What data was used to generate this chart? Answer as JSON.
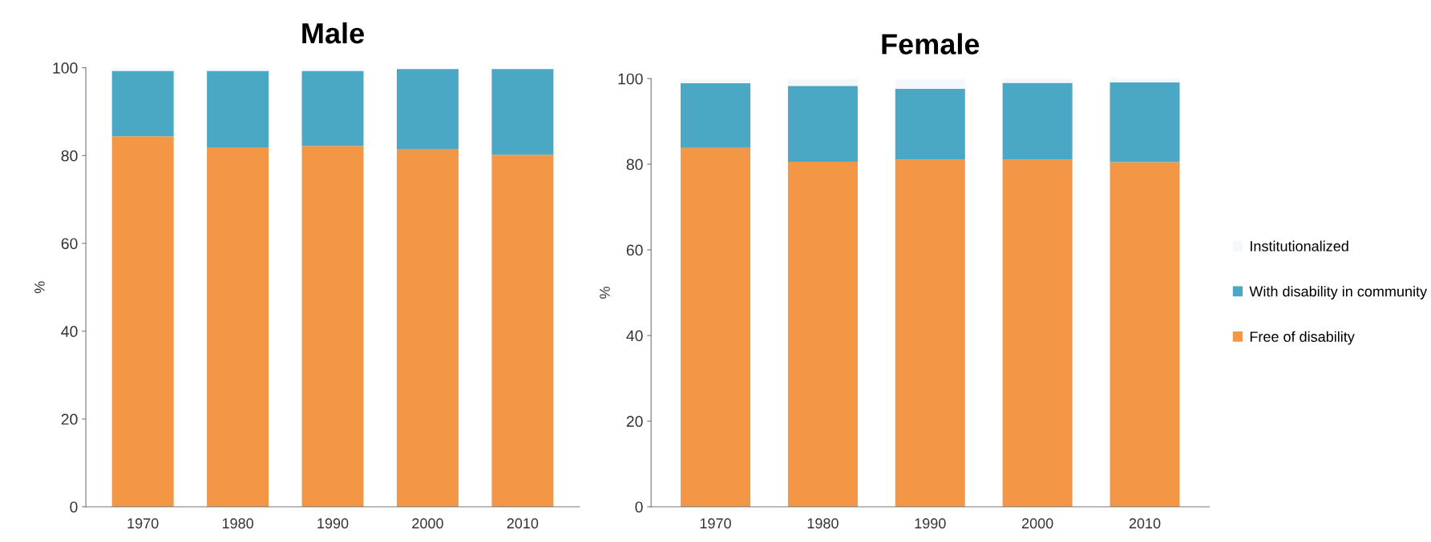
{
  "chart_data": [
    {
      "type": "bar",
      "title": "Male",
      "ylabel": "%",
      "stacked": true,
      "categories": [
        "1970",
        "1980",
        "1990",
        "2000",
        "2010"
      ],
      "ylim": [
        0,
        100
      ],
      "yticks": [
        0,
        20,
        40,
        60,
        80,
        100
      ],
      "grid": false,
      "legend": false,
      "series": [
        {
          "color": "#f39646",
          "values": [
            84.4,
            81.9,
            82.2,
            81.5,
            80.2
          ]
        },
        {
          "color": "#4aa8c5",
          "values": [
            14.9,
            17.4,
            17.1,
            18.2,
            19.5
          ]
        },
        {
          "color": "#f4f8fa",
          "values": [
            0.7,
            0.7,
            0.7,
            null,
            null
          ]
        }
      ]
    },
    {
      "type": "bar",
      "title": "Female",
      "ylabel": "%",
      "stacked": true,
      "categories": [
        "1970",
        "1980",
        "1990",
        "2000",
        "2010"
      ],
      "ylim": [
        0,
        100
      ],
      "yticks": [
        0,
        20,
        40,
        60,
        80,
        100
      ],
      "grid": false,
      "legend": "right",
      "series": [
        {
          "name": "Free of disability",
          "color": "#f39646",
          "values": [
            83.8,
            80.6,
            81.1,
            81.1,
            80.5
          ]
        },
        {
          "name": "With disability in community",
          "color": "#4aa8c5",
          "values": [
            15.1,
            17.7,
            16.5,
            17.9,
            18.6
          ]
        },
        {
          "name": "Institutionalized",
          "color": "#f4f8fa",
          "values": [
            1.1,
            1.7,
            2.4,
            1.0,
            0.9
          ]
        }
      ]
    }
  ]
}
